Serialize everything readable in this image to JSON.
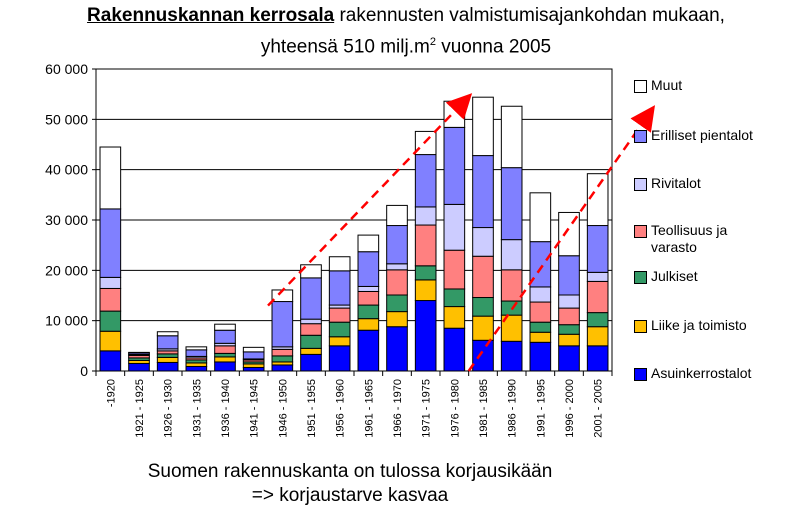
{
  "header": {
    "title_strong": "Rakennuskannan kerrosala",
    "title_rest": " rakennusten valmistumisajankohdan mukaan,",
    "title_line2_pre": "yhteensä 510 milj.m",
    "title_line2_sup": "2",
    "title_line2_post": " vuonna 2005"
  },
  "caption": {
    "line1": "Suomen rakennuskanta on tulossa korjausikään",
    "line2": "=> korjaustarve kasvaa"
  },
  "chart_data": {
    "type": "bar",
    "stacked": true,
    "ylim": [
      0,
      60000
    ],
    "yticks": [
      "0",
      "10 000",
      "20 000",
      "30 000",
      "40 000",
      "50 000",
      "60 000"
    ],
    "categories": [
      "-1920",
      "1921 - 1925",
      "1926 - 1930",
      "1931 - 1935",
      "1936 - 1940",
      "1941 - 1945",
      "1946 - 1950",
      "1951 - 1955",
      "1956 - 1960",
      "1961 - 1965",
      "1966 - 1970",
      "1971 - 1975",
      "1976 - 1980",
      "1981 - 1985",
      "1986 - 1990",
      "1991 - 1995",
      "1996 - 2000",
      "2001 - 2005"
    ],
    "series": [
      {
        "name": "Asuinkerrostalot",
        "color": "#0000ff",
        "values": [
          4000,
          1500,
          1700,
          900,
          1800,
          700,
          1200,
          3300,
          5000,
          8100,
          8800,
          14000,
          8500,
          6100,
          5900,
          5700,
          5000,
          5000
        ]
      },
      {
        "name": "Liike ja toimisto",
        "color": "#ffc000",
        "values": [
          3900,
          600,
          1000,
          700,
          1000,
          700,
          600,
          1200,
          1800,
          2300,
          3000,
          4100,
          4300,
          4800,
          5200,
          2000,
          2300,
          3800
        ]
      },
      {
        "name": "Julkiset",
        "color": "#339966",
        "values": [
          4000,
          500,
          700,
          600,
          700,
          400,
          1200,
          2600,
          2900,
          2700,
          3300,
          2800,
          3500,
          3700,
          2800,
          2000,
          1900,
          2800
        ]
      },
      {
        "name": "Teollisuus ja varasto",
        "color": "#ff8080",
        "values": [
          4500,
          500,
          600,
          400,
          1500,
          400,
          1300,
          2300,
          2800,
          2700,
          5000,
          8100,
          7700,
          8200,
          6200,
          4000,
          3300,
          6200
        ]
      },
      {
        "name": "Rivitalot",
        "color": "#ccccff",
        "values": [
          2200,
          200,
          400,
          300,
          500,
          200,
          500,
          900,
          600,
          1000,
          1200,
          3600,
          9100,
          5700,
          6000,
          3000,
          2600,
          1800
        ]
      },
      {
        "name": "Erilliset pientalot",
        "color": "#8080ff",
        "values": [
          13600,
          300,
          2600,
          1300,
          2600,
          1400,
          9000,
          8200,
          6800,
          6900,
          7600,
          10400,
          15300,
          14300,
          14300,
          9000,
          7800,
          9300
        ]
      },
      {
        "name": "Muut",
        "color": "#ffffff",
        "values": [
          12300,
          100,
          800,
          600,
          1200,
          900,
          2300,
          2600,
          2800,
          3300,
          4000,
          4600,
          5200,
          11600,
          12200,
          9700,
          8600,
          10300
        ]
      }
    ],
    "legend": {
      "position": "right",
      "order": [
        "Muut",
        "Erilliset pientalot",
        "Rivitalot",
        "Teollisuus ja varasto",
        "Julkiset",
        "Liike ja toimisto",
        "Asuinkerrostalot"
      ]
    },
    "trend_arrows": [
      {
        "from": [
          6,
          13000
        ],
        "to": [
          13,
          54500
        ]
      },
      {
        "from": [
          13,
          0
        ],
        "to": [
          19.4,
          52000
        ]
      }
    ],
    "grid": true
  }
}
